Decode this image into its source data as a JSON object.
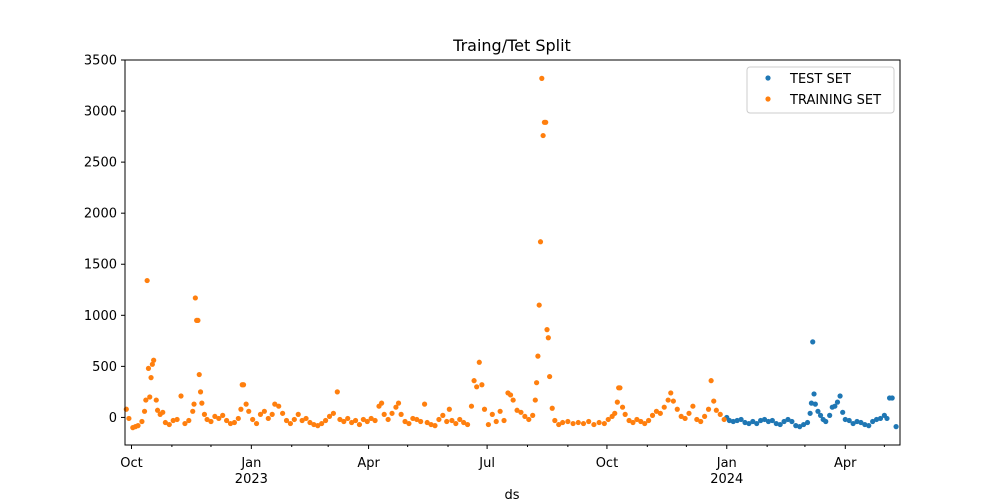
{
  "chart_data": {
    "type": "scatter",
    "title": "Traing/Tet Split",
    "xlabel": "ds",
    "ylabel": "",
    "ylim": [
      -270,
      3500
    ],
    "xlim": [
      "2022-09-26",
      "2024-05-13"
    ],
    "grid": false,
    "legend_position": "top-right",
    "y_ticks": [
      0,
      500,
      1000,
      1500,
      2000,
      2500,
      3000,
      3500
    ],
    "x_major_ticks": [
      {
        "date": "2022-10-01",
        "label": "Oct",
        "sublabel": ""
      },
      {
        "date": "2023-01-01",
        "label": "Jan",
        "sublabel": "2023"
      },
      {
        "date": "2023-04-01",
        "label": "Apr",
        "sublabel": ""
      },
      {
        "date": "2023-07-01",
        "label": "Jul",
        "sublabel": ""
      },
      {
        "date": "2023-10-01",
        "label": "Oct",
        "sublabel": ""
      },
      {
        "date": "2024-01-01",
        "label": "Jan",
        "sublabel": "2024"
      },
      {
        "date": "2024-04-01",
        "label": "Apr",
        "sublabel": ""
      }
    ],
    "x_minor_ticks": [
      "2022-11-01",
      "2022-12-01",
      "2023-02-01",
      "2023-03-01",
      "2023-05-01",
      "2023-06-01",
      "2023-08-01",
      "2023-09-01",
      "2023-11-01",
      "2023-12-01",
      "2024-02-01",
      "2024-03-01",
      "2024-05-01"
    ],
    "series": [
      {
        "name": "TEST SET",
        "color": "#1f77b4",
        "points": [
          [
            "2024-01-01",
            0
          ],
          [
            "2024-01-03",
            -30
          ],
          [
            "2024-01-06",
            -40
          ],
          [
            "2024-01-09",
            -30
          ],
          [
            "2024-01-12",
            -20
          ],
          [
            "2024-01-15",
            -50
          ],
          [
            "2024-01-18",
            -60
          ],
          [
            "2024-01-21",
            -40
          ],
          [
            "2024-01-24",
            -60
          ],
          [
            "2024-01-27",
            -30
          ],
          [
            "2024-01-30",
            -20
          ],
          [
            "2024-02-02",
            -40
          ],
          [
            "2024-02-05",
            -30
          ],
          [
            "2024-02-08",
            -60
          ],
          [
            "2024-02-11",
            -70
          ],
          [
            "2024-02-14",
            -40
          ],
          [
            "2024-02-17",
            -20
          ],
          [
            "2024-02-20",
            -40
          ],
          [
            "2024-02-23",
            -80
          ],
          [
            "2024-02-26",
            -90
          ],
          [
            "2024-02-29",
            -70
          ],
          [
            "2024-03-03",
            -50
          ],
          [
            "2024-03-05",
            40
          ],
          [
            "2024-03-06",
            140
          ],
          [
            "2024-03-07",
            740
          ],
          [
            "2024-03-08",
            230
          ],
          [
            "2024-03-09",
            130
          ],
          [
            "2024-03-11",
            60
          ],
          [
            "2024-03-13",
            20
          ],
          [
            "2024-03-15",
            -20
          ],
          [
            "2024-03-17",
            -40
          ],
          [
            "2024-03-20",
            20
          ],
          [
            "2024-03-22",
            100
          ],
          [
            "2024-03-24",
            110
          ],
          [
            "2024-03-26",
            150
          ],
          [
            "2024-03-28",
            210
          ],
          [
            "2024-03-30",
            50
          ],
          [
            "2024-04-01",
            -20
          ],
          [
            "2024-04-04",
            -30
          ],
          [
            "2024-04-07",
            -60
          ],
          [
            "2024-04-10",
            -40
          ],
          [
            "2024-04-13",
            -50
          ],
          [
            "2024-04-16",
            -70
          ],
          [
            "2024-04-19",
            -80
          ],
          [
            "2024-04-22",
            -40
          ],
          [
            "2024-04-25",
            -20
          ],
          [
            "2024-04-28",
            -10
          ],
          [
            "2024-05-01",
            20
          ],
          [
            "2024-05-03",
            -10
          ],
          [
            "2024-05-05",
            190
          ],
          [
            "2024-05-07",
            190
          ],
          [
            "2024-05-10",
            -90
          ]
        ]
      },
      {
        "name": "TRAINING SET",
        "color": "#ff7f0e",
        "points": [
          [
            "2022-09-27",
            80
          ],
          [
            "2022-09-29",
            -10
          ],
          [
            "2022-10-02",
            -100
          ],
          [
            "2022-10-04",
            -90
          ],
          [
            "2022-10-06",
            -80
          ],
          [
            "2022-10-09",
            -40
          ],
          [
            "2022-10-11",
            60
          ],
          [
            "2022-10-12",
            170
          ],
          [
            "2022-10-13",
            1340
          ],
          [
            "2022-10-14",
            480
          ],
          [
            "2022-10-15",
            200
          ],
          [
            "2022-10-16",
            390
          ],
          [
            "2022-10-17",
            520
          ],
          [
            "2022-10-18",
            560
          ],
          [
            "2022-10-20",
            170
          ],
          [
            "2022-10-21",
            70
          ],
          [
            "2022-10-23",
            30
          ],
          [
            "2022-10-25",
            50
          ],
          [
            "2022-10-27",
            -50
          ],
          [
            "2022-10-30",
            -70
          ],
          [
            "2022-11-02",
            -30
          ],
          [
            "2022-11-05",
            -20
          ],
          [
            "2022-11-08",
            210
          ],
          [
            "2022-11-11",
            -60
          ],
          [
            "2022-11-14",
            -30
          ],
          [
            "2022-11-17",
            60
          ],
          [
            "2022-11-18",
            130
          ],
          [
            "2022-11-19",
            1170
          ],
          [
            "2022-11-20",
            950
          ],
          [
            "2022-11-21",
            950
          ],
          [
            "2022-11-22",
            420
          ],
          [
            "2022-11-23",
            250
          ],
          [
            "2022-11-24",
            140
          ],
          [
            "2022-11-26",
            30
          ],
          [
            "2022-11-28",
            -20
          ],
          [
            "2022-12-01",
            -40
          ],
          [
            "2022-12-04",
            10
          ],
          [
            "2022-12-07",
            -10
          ],
          [
            "2022-12-10",
            20
          ],
          [
            "2022-12-13",
            -30
          ],
          [
            "2022-12-16",
            -60
          ],
          [
            "2022-12-19",
            -50
          ],
          [
            "2022-12-22",
            -10
          ],
          [
            "2022-12-24",
            80
          ],
          [
            "2022-12-25",
            320
          ],
          [
            "2022-12-26",
            320
          ],
          [
            "2022-12-28",
            130
          ],
          [
            "2022-12-30",
            60
          ],
          [
            "2023-01-02",
            -20
          ],
          [
            "2023-01-05",
            -60
          ],
          [
            "2023-01-08",
            30
          ],
          [
            "2023-01-11",
            60
          ],
          [
            "2023-01-14",
            -10
          ],
          [
            "2023-01-17",
            30
          ],
          [
            "2023-01-19",
            130
          ],
          [
            "2023-01-22",
            110
          ],
          [
            "2023-01-25",
            40
          ],
          [
            "2023-01-28",
            -30
          ],
          [
            "2023-01-31",
            -60
          ],
          [
            "2023-02-03",
            -20
          ],
          [
            "2023-02-06",
            30
          ],
          [
            "2023-02-09",
            -30
          ],
          [
            "2023-02-12",
            -10
          ],
          [
            "2023-02-15",
            -50
          ],
          [
            "2023-02-18",
            -70
          ],
          [
            "2023-02-21",
            -80
          ],
          [
            "2023-02-24",
            -60
          ],
          [
            "2023-02-27",
            -30
          ],
          [
            "2023-03-02",
            10
          ],
          [
            "2023-03-05",
            40
          ],
          [
            "2023-03-08",
            250
          ],
          [
            "2023-03-10",
            -20
          ],
          [
            "2023-03-13",
            -40
          ],
          [
            "2023-03-16",
            -10
          ],
          [
            "2023-03-19",
            -50
          ],
          [
            "2023-03-22",
            -30
          ],
          [
            "2023-03-25",
            -70
          ],
          [
            "2023-03-28",
            -20
          ],
          [
            "2023-03-31",
            -40
          ],
          [
            "2023-04-03",
            -10
          ],
          [
            "2023-04-06",
            -30
          ],
          [
            "2023-04-09",
            110
          ],
          [
            "2023-04-11",
            140
          ],
          [
            "2023-04-13",
            30
          ],
          [
            "2023-04-16",
            -20
          ],
          [
            "2023-04-19",
            40
          ],
          [
            "2023-04-22",
            100
          ],
          [
            "2023-04-24",
            140
          ],
          [
            "2023-04-26",
            30
          ],
          [
            "2023-04-29",
            -40
          ],
          [
            "2023-05-02",
            -60
          ],
          [
            "2023-05-05",
            -10
          ],
          [
            "2023-05-08",
            -20
          ],
          [
            "2023-05-11",
            -40
          ],
          [
            "2023-05-14",
            130
          ],
          [
            "2023-05-16",
            -50
          ],
          [
            "2023-05-19",
            -70
          ],
          [
            "2023-05-22",
            -80
          ],
          [
            "2023-05-25",
            -20
          ],
          [
            "2023-05-28",
            20
          ],
          [
            "2023-05-31",
            -40
          ],
          [
            "2023-06-02",
            80
          ],
          [
            "2023-06-04",
            -30
          ],
          [
            "2023-06-07",
            -60
          ],
          [
            "2023-06-10",
            -20
          ],
          [
            "2023-06-13",
            -50
          ],
          [
            "2023-06-16",
            -70
          ],
          [
            "2023-06-19",
            110
          ],
          [
            "2023-06-21",
            360
          ],
          [
            "2023-06-23",
            300
          ],
          [
            "2023-06-25",
            540
          ],
          [
            "2023-06-27",
            320
          ],
          [
            "2023-06-29",
            80
          ],
          [
            "2023-07-02",
            -70
          ],
          [
            "2023-07-05",
            30
          ],
          [
            "2023-07-08",
            -40
          ],
          [
            "2023-07-11",
            60
          ],
          [
            "2023-07-14",
            -30
          ],
          [
            "2023-07-17",
            240
          ],
          [
            "2023-07-19",
            220
          ],
          [
            "2023-07-21",
            170
          ],
          [
            "2023-07-24",
            70
          ],
          [
            "2023-07-27",
            50
          ],
          [
            "2023-07-30",
            10
          ],
          [
            "2023-08-02",
            -20
          ],
          [
            "2023-08-05",
            20
          ],
          [
            "2023-08-07",
            170
          ],
          [
            "2023-08-08",
            340
          ],
          [
            "2023-08-09",
            600
          ],
          [
            "2023-08-10",
            1100
          ],
          [
            "2023-08-11",
            1720
          ],
          [
            "2023-08-12",
            3320
          ],
          [
            "2023-08-13",
            2760
          ],
          [
            "2023-08-14",
            2890
          ],
          [
            "2023-08-15",
            2890
          ],
          [
            "2023-08-16",
            860
          ],
          [
            "2023-08-17",
            780
          ],
          [
            "2023-08-18",
            400
          ],
          [
            "2023-08-20",
            90
          ],
          [
            "2023-08-22",
            -30
          ],
          [
            "2023-08-25",
            -70
          ],
          [
            "2023-08-28",
            -50
          ],
          [
            "2023-09-01",
            -40
          ],
          [
            "2023-09-05",
            -60
          ],
          [
            "2023-09-09",
            -50
          ],
          [
            "2023-09-13",
            -60
          ],
          [
            "2023-09-17",
            -40
          ],
          [
            "2023-09-21",
            -70
          ],
          [
            "2023-09-25",
            -50
          ],
          [
            "2023-09-29",
            -60
          ],
          [
            "2023-10-02",
            -20
          ],
          [
            "2023-10-05",
            10
          ],
          [
            "2023-10-07",
            40
          ],
          [
            "2023-10-09",
            150
          ],
          [
            "2023-10-10",
            290
          ],
          [
            "2023-10-11",
            290
          ],
          [
            "2023-10-13",
            100
          ],
          [
            "2023-10-15",
            30
          ],
          [
            "2023-10-18",
            -30
          ],
          [
            "2023-10-21",
            -50
          ],
          [
            "2023-10-24",
            -20
          ],
          [
            "2023-10-27",
            -40
          ],
          [
            "2023-10-30",
            -60
          ],
          [
            "2023-11-02",
            -30
          ],
          [
            "2023-11-05",
            20
          ],
          [
            "2023-11-08",
            60
          ],
          [
            "2023-11-11",
            40
          ],
          [
            "2023-11-14",
            100
          ],
          [
            "2023-11-17",
            170
          ],
          [
            "2023-11-19",
            240
          ],
          [
            "2023-11-21",
            160
          ],
          [
            "2023-11-24",
            80
          ],
          [
            "2023-11-27",
            10
          ],
          [
            "2023-11-30",
            -10
          ],
          [
            "2023-12-03",
            40
          ],
          [
            "2023-12-06",
            110
          ],
          [
            "2023-12-09",
            -20
          ],
          [
            "2023-12-12",
            -40
          ],
          [
            "2023-12-15",
            10
          ],
          [
            "2023-12-18",
            80
          ],
          [
            "2023-12-20",
            360
          ],
          [
            "2023-12-22",
            160
          ],
          [
            "2023-12-24",
            70
          ],
          [
            "2023-12-27",
            30
          ],
          [
            "2023-12-30",
            -20
          ]
        ]
      }
    ]
  }
}
